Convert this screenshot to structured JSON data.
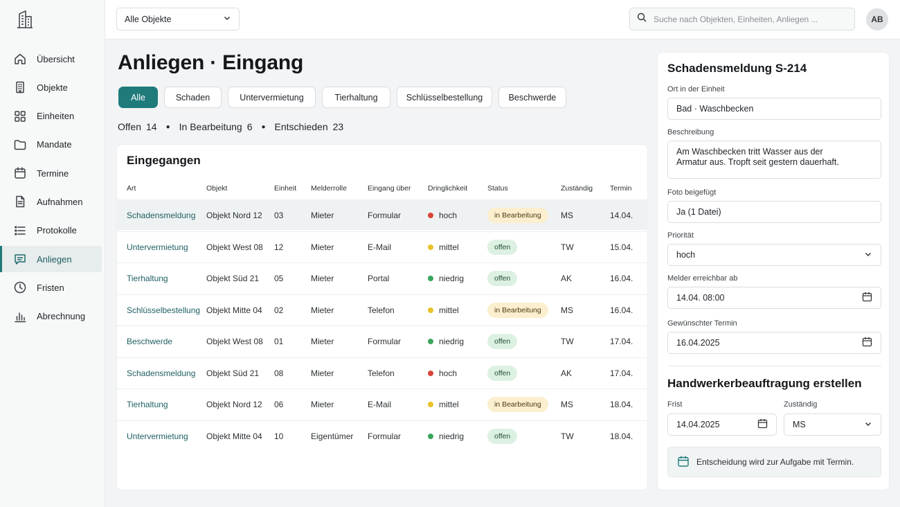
{
  "topbar": {
    "object_select": "Alle Objekte",
    "search_placeholder": "Suche nach Objekten, Einheiten, Anliegen ...",
    "avatar_initials": "AB"
  },
  "sidebar": {
    "items": [
      {
        "label": "Übersicht",
        "icon": "home-icon"
      },
      {
        "label": "Objekte",
        "icon": "building-icon"
      },
      {
        "label": "Einheiten",
        "icon": "grid-icon"
      },
      {
        "label": "Mandate",
        "icon": "folder-icon"
      },
      {
        "label": "Termine",
        "icon": "calendar-icon"
      },
      {
        "label": "Aufnahmen",
        "icon": "document-icon"
      },
      {
        "label": "Protokolle",
        "icon": "list-icon"
      },
      {
        "label": "Anliegen",
        "icon": "chat-icon",
        "active": true
      },
      {
        "label": "Fristen",
        "icon": "clock-icon"
      },
      {
        "label": "Abrechnung",
        "icon": "bar-chart-icon"
      }
    ]
  },
  "main": {
    "title": "Anliegen · Eingang",
    "filters": [
      "Alle",
      "Schaden",
      "Untervermietung",
      "Tierhaltung",
      "Schlüsselbestellung",
      "Beschwerde"
    ],
    "active_filter": "Alle",
    "stats": {
      "open_label": "Offen",
      "open_count": "14",
      "progress_label": "In Bearbeitung",
      "progress_count": "6",
      "decided_label": "Entschieden",
      "decided_count": "23"
    },
    "table": {
      "title": "Eingegangen",
      "columns": [
        "Art",
        "Objekt",
        "Einheit",
        "Melderrolle",
        "Eingang über",
        "Dringlichkeit",
        "Status",
        "Zuständig",
        "Termin"
      ],
      "rows": [
        {
          "art": "Schadensmeldung",
          "objekt": "Objekt Nord 12",
          "einheit": "03",
          "rolle": "Mieter",
          "eingang": "Formular",
          "dringlichkeit": "hoch",
          "status": "in Bearbeitung",
          "zustaendig": "MS",
          "termin": "14.04."
        },
        {
          "art": "Untervermietung",
          "objekt": "Objekt West 08",
          "einheit": "12",
          "rolle": "Mieter",
          "eingang": "E-Mail",
          "dringlichkeit": "mittel",
          "status": "offen",
          "zustaendig": "TW",
          "termin": "15.04."
        },
        {
          "art": "Tierhaltung",
          "objekt": "Objekt Süd 21",
          "einheit": "05",
          "rolle": "Mieter",
          "eingang": "Portal",
          "dringlichkeit": "niedrig",
          "status": "offen",
          "zustaendig": "AK",
          "termin": "16.04."
        },
        {
          "art": "Schlüsselbestellung",
          "objekt": "Objekt Mitte 04",
          "einheit": "02",
          "rolle": "Mieter",
          "eingang": "Telefon",
          "dringlichkeit": "mittel",
          "status": "in Bearbeitung",
          "zustaendig": "MS",
          "termin": "16.04."
        },
        {
          "art": "Beschwerde",
          "objekt": "Objekt West 08",
          "einheit": "01",
          "rolle": "Mieter",
          "eingang": "Formular",
          "dringlichkeit": "niedrig",
          "status": "offen",
          "zustaendig": "TW",
          "termin": "17.04."
        },
        {
          "art": "Schadensmeldung",
          "objekt": "Objekt Süd 21",
          "einheit": "08",
          "rolle": "Mieter",
          "eingang": "Telefon",
          "dringlichkeit": "hoch",
          "status": "offen",
          "zustaendig": "AK",
          "termin": "17.04."
        },
        {
          "art": "Tierhaltung",
          "objekt": "Objekt Nord 12",
          "einheit": "06",
          "rolle": "Mieter",
          "eingang": "E-Mail",
          "dringlichkeit": "mittel",
          "status": "in Bearbeitung",
          "zustaendig": "MS",
          "termin": "18.04."
        },
        {
          "art": "Untervermietung",
          "objekt": "Objekt Mitte 04",
          "einheit": "10",
          "rolle": "Eigentümer",
          "eingang": "Formular",
          "dringlichkeit": "niedrig",
          "status": "offen",
          "zustaendig": "TW",
          "termin": "18.04."
        }
      ]
    }
  },
  "colors": {
    "accent": "#1f7a7a",
    "priority_hoch": "#d9453a",
    "priority_mittel": "#e8c229",
    "priority_niedrig": "#3aa55c"
  },
  "detail": {
    "title": "Schadensmeldung S-214",
    "ort_label": "Ort in der Einheit",
    "ort_value": "Bad · Waschbecken",
    "beschreibung_label": "Beschreibung",
    "beschreibung_value": "Am Waschbecken tritt Wasser aus der Armatur aus. Tropft seit gestern dauerhaft.",
    "foto_label": "Foto beigefügt",
    "foto_value": "Ja (1 Datei)",
    "prioritaet_label": "Priorität",
    "prioritaet_value": "hoch",
    "erreichbar_label": "Melder erreichbar ab",
    "erreichbar_value": "14.04. 08:00",
    "termin_label": "Gewünschter Termin",
    "termin_value": "16.04.2025",
    "handwerker_title": "Handwerkerbeauftragung erstellen",
    "frist_label": "Frist",
    "frist_value": "14.04.2025",
    "zustaendig_label": "Zuständig",
    "zustaendig_value": "MS",
    "info_text": "Entscheidung wird zur Aufgabe mit Termin."
  }
}
